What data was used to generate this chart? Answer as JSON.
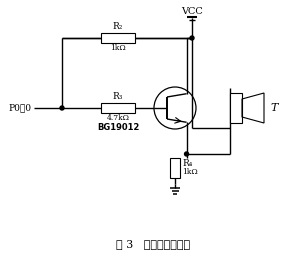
{
  "title": "图 3   超声波发射电路",
  "background_color": "#ffffff",
  "line_color": "#000000",
  "vcc_label": "VCC",
  "p0_label": "P0．0",
  "r2_label": "R₂",
  "r2_val": "1kΩ",
  "r3_label": "R₃",
  "r3_val": "4.7kΩ",
  "r4_label": "R₄",
  "r4_val": "1kΩ",
  "bg_label": "BG19012",
  "t_label": "T"
}
